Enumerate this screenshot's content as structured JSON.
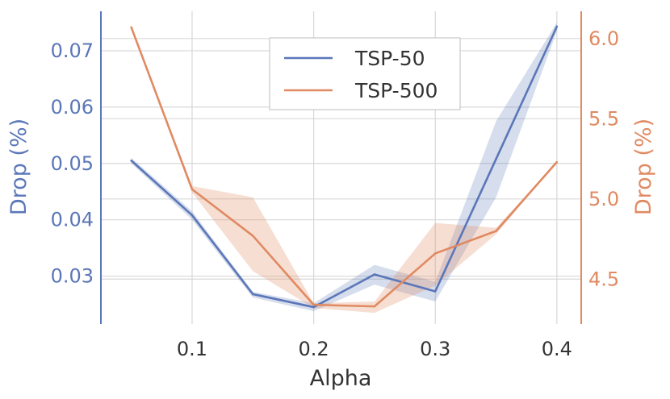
{
  "chart_data": {
    "type": "line",
    "xlabel": "Alpha",
    "ylabel_left": "Drop (%)",
    "ylabel_right": "Drop (%)",
    "xlim": [
      0.025,
      0.42
    ],
    "ylim_left": [
      0.0215,
      0.077
    ],
    "ylim_right": [
      4.22,
      6.17
    ],
    "x_ticks": [
      0.1,
      0.2,
      0.3,
      0.4
    ],
    "x_tick_labels": [
      "0.1",
      "0.2",
      "0.3",
      "0.4"
    ],
    "y_left_ticks": [
      0.03,
      0.04,
      0.05,
      0.06,
      0.07
    ],
    "y_left_tick_labels": [
      "0.03",
      "0.04",
      "0.05",
      "0.06",
      "0.07"
    ],
    "y_right_ticks": [
      4.5,
      5.0,
      5.5,
      6.0
    ],
    "y_right_tick_labels": [
      "4.5",
      "5.0",
      "5.5",
      "6.0"
    ],
    "grid": true,
    "legend_position": "top-center",
    "colors": {
      "tsp50": "#5b77b8",
      "tsp500": "#e08a62",
      "grid": "#d8d8d8"
    },
    "series": [
      {
        "name": "TSP-50",
        "axis": "left",
        "x": [
          0.05,
          0.1,
          0.15,
          0.2,
          0.25,
          0.3,
          0.35,
          0.4
        ],
        "values": [
          0.0505,
          0.0408,
          0.0268,
          0.0245,
          0.0303,
          0.0273,
          0.0508,
          0.0743
        ],
        "band_low": [
          0.05,
          0.04,
          0.0262,
          0.0238,
          0.0285,
          0.0255,
          0.044,
          0.0735
        ],
        "band_high": [
          0.051,
          0.0415,
          0.0272,
          0.0252,
          0.032,
          0.029,
          0.0575,
          0.075
        ]
      },
      {
        "name": "TSP-500",
        "axis": "right",
        "x": [
          0.05,
          0.1,
          0.15,
          0.2,
          0.25,
          0.3,
          0.35,
          0.4
        ],
        "values": [
          6.07,
          5.06,
          4.77,
          4.34,
          4.33,
          4.66,
          4.8,
          5.23
        ],
        "band_low": [
          6.07,
          5.04,
          4.55,
          4.32,
          4.29,
          4.46,
          4.78,
          5.23
        ],
        "band_high": [
          6.07,
          5.08,
          5.01,
          4.35,
          4.36,
          4.85,
          4.82,
          5.23
        ]
      }
    ]
  }
}
